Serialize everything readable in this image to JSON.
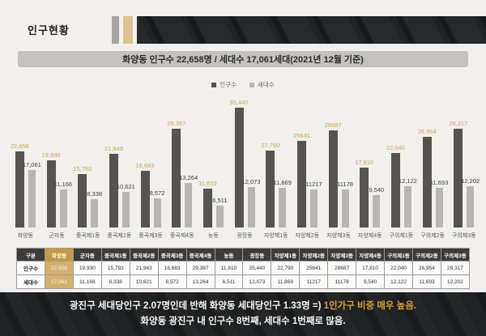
{
  "page": {
    "title": "인구현황"
  },
  "subtitle": {
    "text": "화양동 인구수 22,658명 / 세대수 17,061세대(2021년 12월 기준)"
  },
  "legend": {
    "items": [
      {
        "label": "인구수"
      },
      {
        "label": "세대수"
      }
    ]
  },
  "chart_data": {
    "type": "bar",
    "categories": [
      "화양동",
      "군자동",
      "중곡제1동",
      "중곡제2동",
      "중곡제3동",
      "중곡제4동",
      "능동",
      "광장동",
      "자양제1동",
      "자양제2동",
      "자양제3동",
      "자양제4동",
      "구의제1동",
      "구의제2동",
      "구의제3동"
    ],
    "series": [
      {
        "name": "인구수",
        "values": [
          22658,
          19930,
          15792,
          21943,
          16683,
          29387,
          11610,
          35440,
          22790,
          25641,
          28687,
          17810,
          22040,
          26954,
          29317
        ],
        "labels": [
          "22,658",
          "19,930",
          "15,792",
          "21,943",
          "16,683",
          "29,387",
          "11,610",
          "35,440",
          "22,790",
          "25641",
          "28687",
          "17,810",
          "22,040",
          "26,954",
          "29,317"
        ]
      },
      {
        "name": "세대수",
        "values": [
          17061,
          11166,
          8338,
          10621,
          8572,
          13264,
          6511,
          12073,
          11869,
          11217,
          11178,
          9540,
          12122,
          11693,
          12202
        ],
        "labels": [
          "17,061",
          "11,166",
          "8,338",
          "10,621",
          "8,572",
          "13,264",
          "6,511",
          "12,073",
          "11,869",
          "11217",
          "11178",
          "9,540",
          "12,122",
          "11,693",
          "12,202"
        ]
      }
    ],
    "ylim": [
      0,
      36000
    ],
    "grid": false,
    "legend_position": "top",
    "highlight_category": "화양동"
  },
  "table": {
    "corner": "구분",
    "columns": [
      "화양동",
      "군자동",
      "중곡제1동",
      "중곡제2동",
      "중곡제3동",
      "중곡제4동",
      "능동",
      "광장동",
      "자양제1동",
      "자양제2동",
      "자양제3동",
      "자양제4동",
      "구의제1동",
      "구의제2동",
      "구의제3동"
    ],
    "highlight_column_index": 0,
    "rows": [
      {
        "label": "인구수",
        "values": [
          "22,658",
          "19,930",
          "15,792",
          "21,943",
          "16,683",
          "29,387",
          "11,610",
          "35,440",
          "22,790",
          "25641",
          "28687",
          "17,810",
          "22,040",
          "26,954",
          "29,317"
        ]
      },
      {
        "label": "세대수",
        "values": [
          "17,061",
          "11,166",
          "8,338",
          "10,621",
          "8,572",
          "13,264",
          "6,511",
          "12,073",
          "11,869",
          "11217",
          "11178",
          "9,540",
          "12,122",
          "11,693",
          "12,202"
        ]
      }
    ]
  },
  "footer": {
    "line1_prefix": "광진구 세대당인구 2.07명인데 반해 화양동 세대당인구 1.33명 =) ",
    "line1_highlight": "1인가구 비중 매우 높음.",
    "line2": "화양동 광진구 내 인구수 8번째, 세대수 1번째로 많음."
  },
  "colors": {
    "accent_gray": "#a7a5a3",
    "accent_tan": "#ddc392",
    "banner_dark": "#26282a",
    "bar_population": "#565452",
    "bar_household": "#b8b6b4",
    "value_label_gold": "#cfa254",
    "table_header_bg": "#3e3c3b",
    "highlight_header_bg": "#c49a45",
    "highlight_cell_bg": "#d4b171",
    "footer_highlight": "#d79b3f"
  }
}
